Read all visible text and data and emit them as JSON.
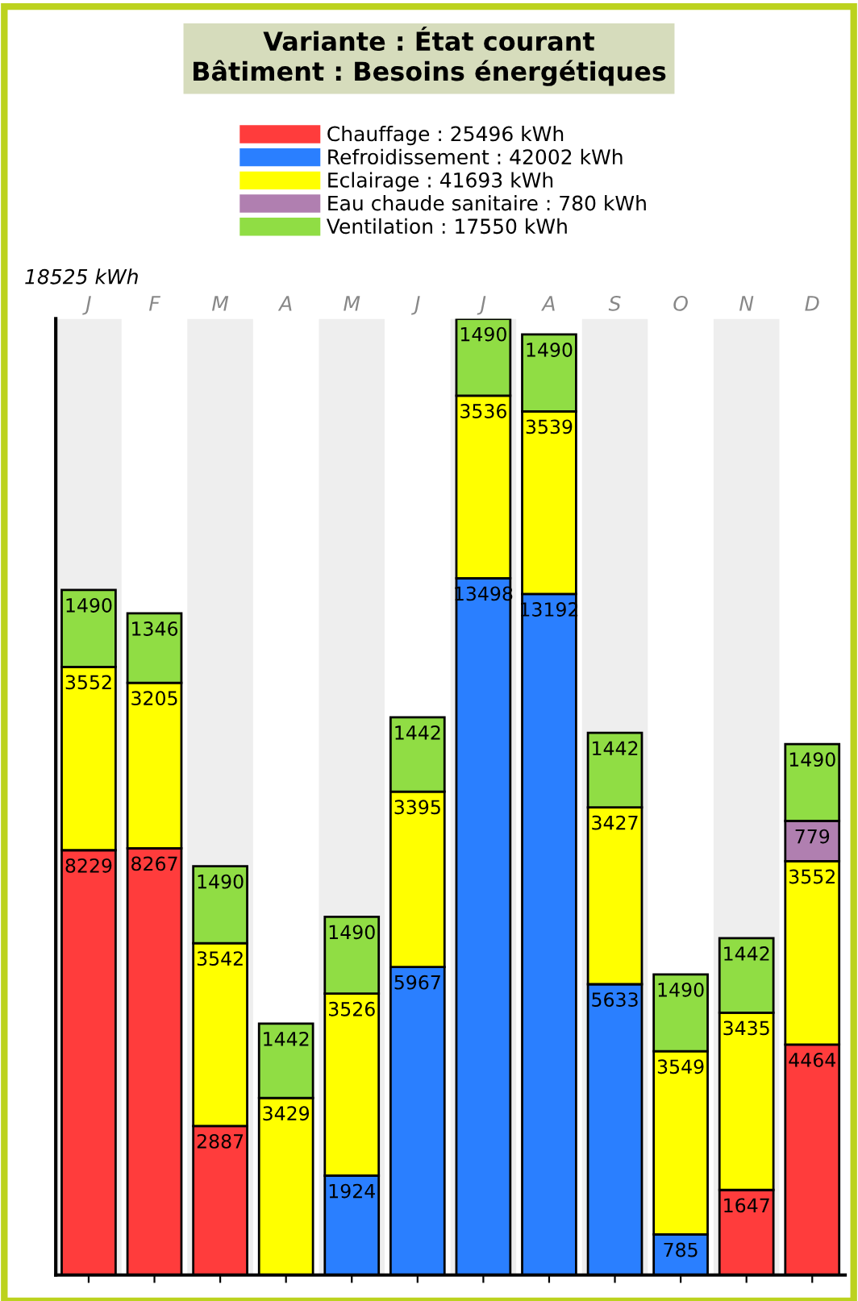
{
  "chart_data": {
    "type": "bar",
    "title": "Variante : État courant\nBâtiment : Besoins énergétiques",
    "stacked": true,
    "data_labels": true,
    "legend": "top",
    "grid": false,
    "categories": [
      "J",
      "F",
      "M",
      "A",
      "M",
      "J",
      "J",
      "A",
      "S",
      "O",
      "N",
      "D"
    ],
    "ylim": [
      0,
      18525
    ],
    "annotations": [
      "18525 kWh"
    ],
    "series": [
      {
        "name": "Chauffage : 25496 kWh",
        "color": "#ff3c3c",
        "values": [
          8229,
          8267,
          2887,
          null,
          null,
          null,
          null,
          null,
          null,
          null,
          1647,
          4464
        ]
      },
      {
        "name": "Refroidissement : 42002 kWh",
        "color": "#2a7fff",
        "values": [
          null,
          null,
          null,
          null,
          1924,
          5967,
          13498,
          13192,
          5633,
          785,
          null,
          null
        ]
      },
      {
        "name": "Eclairage : 41693 kWh",
        "color": "#ffff00",
        "values": [
          3552,
          3205,
          3542,
          3429,
          3526,
          3395,
          3536,
          3539,
          3427,
          3549,
          3435,
          3552
        ]
      },
      {
        "name": "Eau chaude sanitaire : 780 kWh",
        "color": "#b07fb0",
        "values": [
          null,
          null,
          null,
          null,
          null,
          null,
          null,
          null,
          null,
          null,
          null,
          779
        ]
      },
      {
        "name": "Ventilation : 17550 kWh",
        "color": "#90dd44",
        "values": [
          1490,
          1346,
          1490,
          1442,
          1490,
          1442,
          1490,
          1490,
          1442,
          1490,
          1442,
          1490
        ]
      }
    ]
  }
}
